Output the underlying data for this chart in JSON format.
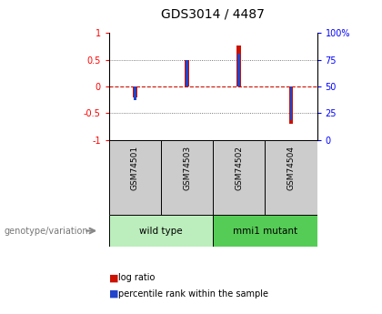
{
  "title": "GDS3014 / 4487",
  "samples": [
    "GSM74501",
    "GSM74503",
    "GSM74502",
    "GSM74504"
  ],
  "log_ratios": [
    -0.2,
    0.5,
    0.76,
    -0.7
  ],
  "percentile_ranks": [
    37,
    75,
    81,
    18
  ],
  "groups": [
    {
      "label": "wild type",
      "samples": [
        0,
        1
      ],
      "color": "#bbeebc"
    },
    {
      "label": "mmi1 mutant",
      "samples": [
        2,
        3
      ],
      "color": "#55cc55"
    }
  ],
  "ylim": [
    -1,
    1
  ],
  "bar_color_red": "#cc1100",
  "bar_color_blue": "#2244cc",
  "bar_width": 0.08,
  "blue_bar_width": 0.045,
  "grid_color": "#555555",
  "zero_line_color": "#cc1100",
  "label_log_ratio": "log ratio",
  "label_percentile": "percentile rank within the sample",
  "genotype_label": "genotype/variation"
}
